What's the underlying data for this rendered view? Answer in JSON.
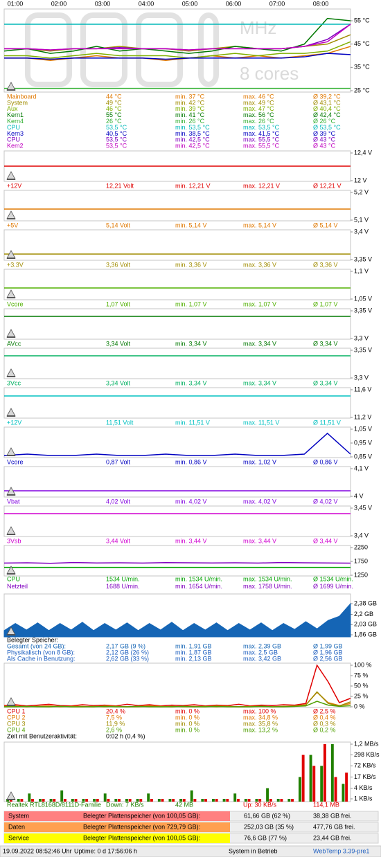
{
  "time_labels": [
    "01:00",
    "02:00",
    "03:00",
    "04:00",
    "05:00",
    "06:00",
    "07:00",
    "08:00"
  ],
  "watermark": [
    "MHz",
    "8 cores"
  ],
  "panels": [
    {
      "type": "line",
      "ylim": [
        25,
        55
      ],
      "yticks": [
        {
          "value": 55,
          "label": "55 °C"
        },
        {
          "value": 45,
          "label": "45 °C"
        },
        {
          "value": 35,
          "label": "35 °C"
        },
        {
          "value": 25,
          "label": "25 °C"
        }
      ],
      "rows": [
        {
          "color": "#e07800",
          "cells": [
            "Mainboard",
            "44 °C",
            "min. 37 °C",
            "max. 46 °C",
            "Ø 39,2 °C"
          ],
          "values": [
            39,
            39,
            38,
            39,
            40,
            39,
            39,
            38,
            39,
            40,
            39,
            40,
            39,
            40,
            41,
            44
          ]
        },
        {
          "color": "#a08c00",
          "cells": [
            "System",
            "49 °C",
            "min. 42 °C",
            "max. 49 °C",
            "Ø 43,1 °C"
          ],
          "values": [
            43,
            43,
            42,
            43,
            43,
            44,
            43,
            43,
            42,
            43,
            44,
            43,
            43,
            44,
            45,
            49
          ]
        },
        {
          "color": "#80b000",
          "cells": [
            "Aux",
            "46 °C",
            "min. 39 °C",
            "max. 47 °C",
            "Ø 40,4 °C"
          ],
          "values": [
            40,
            40,
            39,
            40,
            41,
            40,
            40,
            40,
            39,
            40,
            41,
            40,
            41,
            41,
            42,
            46
          ]
        },
        {
          "color": "#007800",
          "cells": [
            "Kern1",
            "55 °C",
            "min. 41 °C",
            "max. 56 °C",
            "Ø 42,4 °C"
          ],
          "values": [
            42,
            43,
            41,
            42,
            44,
            42,
            43,
            42,
            41,
            42,
            44,
            43,
            42,
            45,
            56,
            55
          ]
        },
        {
          "color": "#30b030",
          "cells": [
            "Kern4",
            "26 °C",
            "min. 26 °C",
            "max. 26 °C",
            "Ø 26 °C"
          ],
          "values": [
            26,
            26
          ]
        },
        {
          "color": "#00b8b8",
          "cells": [
            "CPU",
            "53,5 °C",
            "min. 53,5 °C",
            "max. 53,5 °C",
            "Ø 53,5 °C"
          ],
          "values": [
            53.5,
            53.5
          ]
        },
        {
          "color": "#0000c0",
          "cells": [
            "Kern3",
            "40,5 °C",
            "min. 38,5 °C",
            "max. 41,5 °C",
            "Ø 39 °C"
          ],
          "values": [
            39,
            39,
            38.5,
            39,
            39,
            39,
            39,
            38.5,
            39,
            39,
            39,
            39,
            39,
            39.5,
            41,
            40.5
          ]
        },
        {
          "color": "#8000c0",
          "cells": [
            "CPU",
            "53,5 °C",
            "min. 42,5 °C",
            "max. 55,5 °C",
            "Ø 43 °C"
          ],
          "values": [
            43,
            43,
            42.5,
            43,
            43,
            43.5,
            43,
            43,
            42.5,
            43,
            43,
            43,
            43,
            44,
            47,
            53.5
          ]
        },
        {
          "color": "#c000c0",
          "cells": [
            "Kem2",
            "53,5 °C",
            "min. 42,5 °C",
            "max. 55,5 °C",
            "Ø 43 °C"
          ],
          "values": [
            43,
            43,
            42.5,
            43,
            43,
            43,
            43,
            43,
            42.5,
            43,
            43,
            43,
            43,
            44,
            46,
            53.5
          ]
        }
      ]
    },
    {
      "type": "line",
      "ylim": [
        12,
        12.4
      ],
      "yticks": [
        {
          "value": 12.4,
          "label": "12,4 V"
        },
        {
          "value": 12,
          "label": "12 V"
        }
      ],
      "rows": [
        {
          "color": "#e00000",
          "cells": [
            "+12V",
            "12,21 Volt",
            "min. 12,21 V",
            "max. 12,21 V",
            "Ø 12,21 V"
          ],
          "values": [
            12.21,
            12.21
          ]
        }
      ]
    },
    {
      "type": "line",
      "ylim": [
        5.1,
        5.2
      ],
      "yticks": [
        {
          "value": 5.2,
          "label": "5,2 V"
        },
        {
          "value": 5.1,
          "label": "5,1 V"
        }
      ],
      "rows": [
        {
          "color": "#e07800",
          "cells": [
            "+5V",
            "5,14 Volt",
            "min. 5,14 V",
            "max. 5,14 V",
            "Ø 5,14 V"
          ],
          "values": [
            5.14,
            5.14
          ]
        }
      ]
    },
    {
      "type": "line",
      "ylim": [
        3.35,
        3.4
      ],
      "yticks": [
        {
          "value": 3.4,
          "label": "3,4 V"
        },
        {
          "value": 3.35,
          "label": "3,35 V"
        }
      ],
      "rows": [
        {
          "color": "#a08c00",
          "cells": [
            "+3.3V",
            "3,36 Volt",
            "min. 3,36 V",
            "max. 3,36 V",
            "Ø 3,36 V"
          ],
          "values": [
            3.36,
            3.36
          ]
        }
      ]
    },
    {
      "type": "line",
      "ylim": [
        1.05,
        1.1
      ],
      "yticks": [
        {
          "value": 1.1,
          "label": "1,1 V"
        },
        {
          "value": 1.05,
          "label": "1,05 V"
        }
      ],
      "rows": [
        {
          "color": "#50b000",
          "cells": [
            "Vcore",
            "1,07 Volt",
            "min. 1,07 V",
            "max. 1,07 V",
            "Ø 1,07 V"
          ],
          "values": [
            1.07,
            1.07
          ]
        }
      ]
    },
    {
      "type": "line",
      "ylim": [
        3.3,
        3.35
      ],
      "yticks": [
        {
          "value": 3.35,
          "label": "3,35 V"
        },
        {
          "value": 3.3,
          "label": "3,3 V"
        }
      ],
      "rows": [
        {
          "color": "#007800",
          "cells": [
            "AVcc",
            "3,34 Volt",
            "min. 3,34 V",
            "max. 3,34 V",
            "Ø 3,34 V"
          ],
          "values": [
            3.34,
            3.34
          ]
        }
      ]
    },
    {
      "type": "line",
      "ylim": [
        3.3,
        3.35
      ],
      "yticks": [
        {
          "value": 3.35,
          "label": "3,35 V"
        },
        {
          "value": 3.3,
          "label": "3,3 V"
        }
      ],
      "rows": [
        {
          "color": "#00b060",
          "cells": [
            "3Vcc",
            "3,34 Volt",
            "min. 3,34 V",
            "max. 3,34 V",
            "Ø 3,34 V"
          ],
          "values": [
            3.34,
            3.34
          ]
        }
      ]
    },
    {
      "type": "line",
      "ylim": [
        11.2,
        11.6
      ],
      "yticks": [
        {
          "value": 11.6,
          "label": "11,6 V"
        },
        {
          "value": 11.2,
          "label": "11,2 V"
        }
      ],
      "rows": [
        {
          "color": "#00c0c0",
          "cells": [
            "+12V",
            "11,51 Volt",
            "min. 11,51 V",
            "max. 11,51 V",
            "Ø 11,51 V"
          ],
          "values": [
            11.51,
            11.51
          ]
        }
      ]
    },
    {
      "type": "line",
      "ylim": [
        0.85,
        1.05
      ],
      "yticks": [
        {
          "value": 1.05,
          "label": "1,05 V"
        },
        {
          "value": 0.95,
          "label": "0,95 V"
        },
        {
          "value": 0.85,
          "label": "0,85 V"
        }
      ],
      "rows": [
        {
          "color": "#0000c0",
          "cells": [
            "Vcore",
            "0,87 Volt",
            "min. 0,86 V",
            "max. 1,02 V",
            "Ø 0,86 V"
          ],
          "values": [
            0.86,
            0.87,
            0.86,
            0.86,
            0.87,
            0.86,
            0.86,
            0.87,
            0.86,
            0.86,
            0.87,
            0.86,
            0.86,
            0.87,
            1.02,
            0.87
          ]
        }
      ]
    },
    {
      "type": "line",
      "ylim": [
        4,
        4.1
      ],
      "yticks": [
        {
          "value": 4.1,
          "label": "4,1 V"
        },
        {
          "value": 4,
          "label": "4 V"
        }
      ],
      "rows": [
        {
          "color": "#8000e0",
          "cells": [
            "Vbat",
            "4,02 Volt",
            "min. 4,02 V",
            "max. 4,02 V",
            "Ø 4,02 V"
          ],
          "values": [
            4.02,
            4.02
          ]
        }
      ]
    },
    {
      "type": "line",
      "ylim": [
        3.4,
        3.45
      ],
      "yticks": [
        {
          "value": 3.45,
          "label": "3,45 V"
        },
        {
          "value": 3.4,
          "label": "3,4 V"
        }
      ],
      "rows": [
        {
          "color": "#d000d0",
          "cells": [
            "3Vsb",
            "3,44 Volt",
            "min. 3,44 V",
            "max. 3,44 V",
            "Ø 3,44 V"
          ],
          "values": [
            3.44,
            3.44
          ]
        }
      ]
    },
    {
      "type": "line",
      "ylim": [
        1250,
        2250
      ],
      "yticks": [
        2250,
        1750,
        1250
      ],
      "rows": [
        {
          "color": "#00a000",
          "cells": [
            "CPU",
            "1534 U/min.",
            "min. 1534 U/min.",
            "max. 1534 U/min.",
            "Ø 1534 U/min."
          ],
          "values": [
            1534,
            1534
          ]
        },
        {
          "color": "#8000c0",
          "cells": [
            "Netzteil",
            "1688 U/min.",
            "min. 1654 U/min.",
            "max. 1758 U/min.",
            "Ø 1699 U/min."
          ],
          "values": [
            1690,
            1700,
            1680,
            1710,
            1695,
            1700,
            1690,
            1705,
            1700,
            1695,
            1700,
            1690,
            1710,
            1700,
            1695,
            1688
          ]
        }
      ]
    },
    {
      "type": "area",
      "header": "Belegter Speicher:",
      "ylim": [
        1.86,
        2.38
      ],
      "yticks": [
        {
          "value": 2.38,
          "label": "2,38 GB"
        },
        {
          "value": 2.2,
          "label": "2,2 GB"
        },
        {
          "value": 2.03,
          "label": "2,03 GB"
        },
        {
          "value": 1.86,
          "label": "1,86 GB"
        }
      ],
      "rows": [
        {
          "color": "#1565b5",
          "cells": [
            "Gesamt (von 24 GB):",
            "2,17 GB (9 %)",
            "min. 1,91 GB",
            "max. 2,39 GB",
            "Ø 1,99 GB"
          ],
          "values": [
            1.93,
            2.05,
            1.94,
            2.06,
            1.93,
            2.05,
            1.94,
            2.07,
            1.93,
            2.05,
            1.94,
            2.06,
            1.93,
            2.05,
            1.94,
            2.07,
            1.93,
            2.05,
            1.94,
            2.06,
            1.93,
            2.05,
            1.94,
            2.06,
            1.93,
            2.05,
            1.95,
            2.08,
            1.96,
            2.1,
            2.17,
            2.38
          ]
        },
        {
          "color": "#2060c0",
          "cells": [
            "Physikalisch (von 8 GB):",
            "2,12 GB (26 %)",
            "min. 1,87 GB",
            "max. 2,5 GB",
            "Ø 1,96 GB"
          ]
        },
        {
          "color": "#2060c0",
          "cells": [
            "Als Cache in Benutzung:",
            "2,62 GB (33 %)",
            "min. 2,13 GB",
            "max. 3,42 GB",
            "Ø 2,56 GB"
          ]
        }
      ]
    },
    {
      "type": "line",
      "ylim": [
        0,
        100
      ],
      "yticks": [
        {
          "value": 100,
          "label": "100 %"
        },
        {
          "value": 75,
          "label": "75 %"
        },
        {
          "value": 50,
          "label": "50 %"
        },
        {
          "value": 25,
          "label": "25 %"
        },
        {
          "value": 0,
          "label": "0 %"
        }
      ],
      "footer": [
        "Zeit mit Benutzeraktivität:",
        "0:02 h (0,4 %)"
      ],
      "rows": [
        {
          "color": "#e00000",
          "cells": [
            "CPU 1",
            "20,4 %",
            "min. 0 %",
            "max. 100 %",
            "Ø 2,5 %"
          ],
          "values": [
            3,
            5,
            2,
            4,
            6,
            3,
            2,
            5,
            3,
            4,
            2,
            6,
            3,
            5,
            2,
            4,
            3,
            5,
            2,
            4,
            3,
            6,
            2,
            4,
            3,
            5,
            4,
            8,
            100,
            60,
            10,
            20.4
          ]
        },
        {
          "color": "#e07800",
          "cells": [
            "CPU 2",
            "7,5 %",
            "min. 0 %",
            "max. 34,8 %",
            "Ø 0,4 %"
          ],
          "values": [
            1,
            2,
            0,
            1,
            2,
            0,
            1,
            1,
            0,
            2,
            1,
            0,
            1,
            2,
            1,
            0,
            1,
            1,
            0,
            2,
            1,
            0,
            1,
            1,
            0,
            1,
            2,
            5,
            34.8,
            10,
            3,
            7.5
          ]
        },
        {
          "color": "#a08c00",
          "cells": [
            "CPU 3",
            "11,9 %",
            "min. 0 %",
            "max. 35,8 %",
            "Ø 0,3 %"
          ],
          "values": [
            0,
            1,
            0,
            1,
            0,
            1,
            0,
            0,
            1,
            0,
            1,
            0,
            0,
            1,
            0,
            1,
            0,
            0,
            1,
            0,
            1,
            0,
            0,
            1,
            0,
            1,
            1,
            4,
            35.8,
            8,
            2,
            11.9
          ]
        },
        {
          "color": "#50a000",
          "cells": [
            "CPU 4",
            "2,6 %",
            "min. 0 %",
            "max. 13,2 %",
            "Ø 0,2 %"
          ],
          "values": [
            0,
            0,
            1,
            0,
            0,
            1,
            0,
            0,
            0,
            1,
            0,
            0,
            1,
            0,
            0,
            0,
            1,
            0,
            0,
            1,
            0,
            0,
            0,
            1,
            0,
            0,
            1,
            2,
            13.2,
            4,
            1,
            2.6
          ]
        }
      ]
    },
    {
      "type": "bar",
      "log": true,
      "ylim": [
        1,
        1200
      ],
      "yticks": [
        {
          "value": 1200,
          "label": "1,2 MB/s"
        },
        {
          "value": 298,
          "label": "298 KB/s"
        },
        {
          "value": 72,
          "label": "72 KB/s"
        },
        {
          "value": 17,
          "label": "17 KB/s"
        },
        {
          "value": 4,
          "label": "4 KB/s"
        },
        {
          "value": 1,
          "label": "1 KB/s"
        }
      ],
      "series": [
        {
          "color": "#208000",
          "values": [
            1,
            1,
            2,
            1,
            1,
            3,
            1,
            1,
            1,
            2,
            1,
            1,
            1,
            2,
            1,
            1,
            1,
            3,
            1,
            1,
            1,
            2,
            1,
            1,
            4,
            1,
            1,
            17,
            298,
            72,
            1200,
            7
          ]
        },
        {
          "color": "#e00000",
          "values": [
            1,
            1,
            1,
            1,
            1,
            1,
            1,
            1,
            1,
            1,
            1,
            1,
            1,
            1,
            1,
            1,
            1,
            1,
            1,
            1,
            1,
            1,
            1,
            1,
            1,
            1,
            1,
            298,
            72,
            1200,
            17,
            30
          ]
        }
      ],
      "rows": [
        {
          "colors": [
            "#208000",
            "#208000",
            "#208000",
            "#e00000",
            "#e00000"
          ],
          "cells": [
            "Realtek RTL8168D/8111D-Familie",
            "Down: 7 KB/s",
            "42 MB",
            "Up: 30 KB/s",
            "114,1 MB"
          ]
        }
      ]
    }
  ],
  "disks": [
    {
      "color": "#ff8080",
      "cells": [
        "System",
        "Belegter Plattenspeicher (von 100,05 GB):",
        "61,66 GB (62 %)",
        "38,38 GB frei."
      ]
    },
    {
      "color": "#ffa050",
      "cells": [
        "Daten",
        "Belegter Plattenspeicher (von 729,79 GB):",
        "252,03 GB (35 %)",
        "477,76 GB frei."
      ]
    },
    {
      "color": "#ffff00",
      "cells": [
        "Service",
        "Belegter Plattenspeicher (von 100,05 GB):",
        "76,6 GB (77 %)",
        "23,44 GB frei."
      ]
    }
  ],
  "status": {
    "datetime": "19.09.2022 08:52:46 Uhr",
    "uptime": "Uptime: 0 d 17:56:06 h",
    "state": "System in Betrieb",
    "version": "WebTemp 3.39-pre1"
  }
}
